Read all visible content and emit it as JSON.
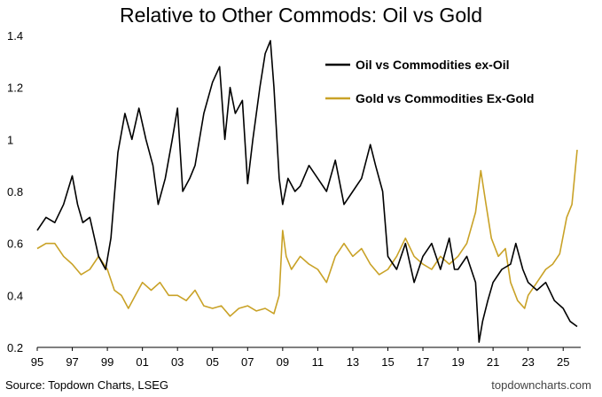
{
  "chart_data": {
    "type": "line",
    "title": "Relative to Other Commods: Oil vs Gold",
    "xlabel": "",
    "ylabel": "",
    "ylim": [
      0.2,
      1.4
    ],
    "xlim": [
      1995,
      2026
    ],
    "x_tick_labels": [
      "95",
      "97",
      "99",
      "01",
      "03",
      "05",
      "07",
      "09",
      "11",
      "13",
      "15",
      "17",
      "19",
      "21",
      "23",
      "25"
    ],
    "y_tick_labels": [
      "0.2",
      "0.4",
      "0.6",
      "0.8",
      "1",
      "1.2",
      "1.4"
    ],
    "legend_position": "top-right",
    "series": [
      {
        "name": "Oil vs Commodities ex-Oil",
        "color": "#000000",
        "x": [
          1995.0,
          1995.5,
          1996.0,
          1996.5,
          1997.0,
          1997.3,
          1997.6,
          1998.0,
          1998.5,
          1998.9,
          1999.2,
          1999.6,
          2000.0,
          2000.4,
          2000.8,
          2001.2,
          2001.6,
          2001.9,
          2002.3,
          2002.7,
          2003.0,
          2003.3,
          2003.7,
          2004.0,
          2004.5,
          2005.0,
          2005.4,
          2005.7,
          2006.0,
          2006.3,
          2006.7,
          2007.0,
          2007.3,
          2007.7,
          2008.0,
          2008.3,
          2008.5,
          2008.8,
          2009.0,
          2009.3,
          2009.7,
          2010.0,
          2010.5,
          2011.0,
          2011.5,
          2012.0,
          2012.5,
          2013.0,
          2013.5,
          2014.0,
          2014.3,
          2014.7,
          2015.0,
          2015.5,
          2016.0,
          2016.5,
          2017.0,
          2017.5,
          2018.0,
          2018.5,
          2018.8,
          2019.0,
          2019.5,
          2020.0,
          2020.2,
          2020.4,
          2020.7,
          2021.0,
          2021.5,
          2022.0,
          2022.3,
          2022.7,
          2023.0,
          2023.5,
          2024.0,
          2024.5,
          2025.0,
          2025.4,
          2025.8
        ],
        "values": [
          0.65,
          0.7,
          0.68,
          0.75,
          0.86,
          0.75,
          0.68,
          0.7,
          0.55,
          0.5,
          0.62,
          0.95,
          1.1,
          1.0,
          1.12,
          1.0,
          0.9,
          0.75,
          0.85,
          1.0,
          1.12,
          0.8,
          0.85,
          0.9,
          1.1,
          1.22,
          1.28,
          1.0,
          1.2,
          1.1,
          1.15,
          0.83,
          1.0,
          1.2,
          1.33,
          1.38,
          1.2,
          0.85,
          0.75,
          0.85,
          0.8,
          0.82,
          0.9,
          0.85,
          0.8,
          0.92,
          0.75,
          0.8,
          0.85,
          0.98,
          0.9,
          0.8,
          0.55,
          0.5,
          0.6,
          0.45,
          0.55,
          0.6,
          0.5,
          0.62,
          0.5,
          0.5,
          0.55,
          0.45,
          0.22,
          0.3,
          0.38,
          0.45,
          0.5,
          0.52,
          0.6,
          0.5,
          0.45,
          0.42,
          0.45,
          0.38,
          0.35,
          0.3,
          0.28
        ]
      },
      {
        "name": "Gold vs Commodities Ex-Gold",
        "color": "#C9A227",
        "x": [
          1995.0,
          1995.5,
          1996.0,
          1996.5,
          1997.0,
          1997.5,
          1998.0,
          1998.5,
          1999.0,
          1999.4,
          1999.8,
          2000.2,
          2000.6,
          2001.0,
          2001.5,
          2002.0,
          2002.5,
          2003.0,
          2003.5,
          2004.0,
          2004.5,
          2005.0,
          2005.5,
          2006.0,
          2006.5,
          2007.0,
          2007.5,
          2008.0,
          2008.5,
          2008.8,
          2009.0,
          2009.2,
          2009.5,
          2010.0,
          2010.5,
          2011.0,
          2011.5,
          2012.0,
          2012.5,
          2013.0,
          2013.5,
          2014.0,
          2014.5,
          2015.0,
          2015.5,
          2016.0,
          2016.5,
          2017.0,
          2017.5,
          2018.0,
          2018.5,
          2019.0,
          2019.5,
          2020.0,
          2020.3,
          2020.6,
          2020.9,
          2021.3,
          2021.7,
          2022.0,
          2022.4,
          2022.8,
          2023.0,
          2023.5,
          2024.0,
          2024.4,
          2024.8,
          2025.2,
          2025.5,
          2025.8
        ],
        "values": [
          0.58,
          0.6,
          0.6,
          0.55,
          0.52,
          0.48,
          0.5,
          0.55,
          0.5,
          0.42,
          0.4,
          0.35,
          0.4,
          0.45,
          0.42,
          0.45,
          0.4,
          0.4,
          0.38,
          0.42,
          0.36,
          0.35,
          0.36,
          0.32,
          0.35,
          0.36,
          0.34,
          0.35,
          0.33,
          0.4,
          0.65,
          0.55,
          0.5,
          0.55,
          0.52,
          0.5,
          0.45,
          0.55,
          0.6,
          0.55,
          0.58,
          0.52,
          0.48,
          0.5,
          0.55,
          0.62,
          0.55,
          0.52,
          0.5,
          0.55,
          0.52,
          0.55,
          0.6,
          0.72,
          0.88,
          0.75,
          0.62,
          0.55,
          0.58,
          0.45,
          0.38,
          0.35,
          0.4,
          0.45,
          0.5,
          0.52,
          0.56,
          0.7,
          0.75,
          0.96
        ]
      }
    ]
  },
  "footer": {
    "source": "Source: Topdown Charts, LSEG",
    "watermark": "topdowncharts.com"
  }
}
